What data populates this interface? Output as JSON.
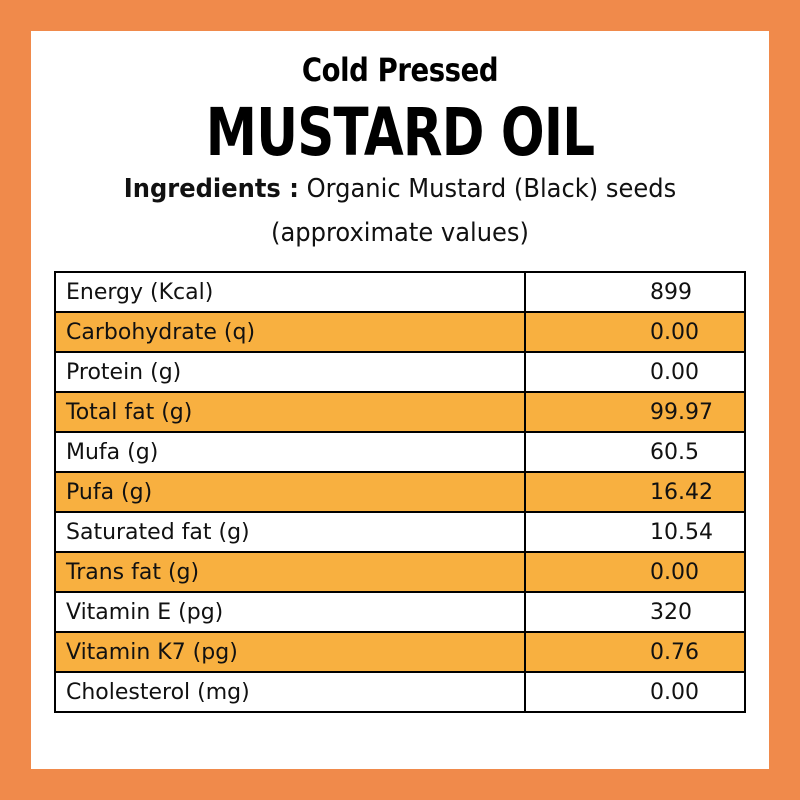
{
  "header": {
    "subtitle": "Cold Pressed",
    "title": "MUSTARD OIL",
    "ingredients_label": "Ingredients :",
    "ingredients_text": "Organic Mustard (Black) seeds",
    "note": "(approximate values)"
  },
  "nutrition": {
    "rows": [
      {
        "label": "Energy (Kcal)",
        "value": "899"
      },
      {
        "label": "Carbohydrate (q)",
        "value": "0.00"
      },
      {
        "label": "Protein (g)",
        "value": "0.00"
      },
      {
        "label": "Total fat (g)",
        "value": "99.97"
      },
      {
        "label": "Mufa (g)",
        "value": "60.5"
      },
      {
        "label": "Pufa (g)",
        "value": "16.42"
      },
      {
        "label": "Saturated fat (g)",
        "value": "10.54"
      },
      {
        "label": "Trans fat (g)",
        "value": "0.00"
      },
      {
        "label": "Vitamin E (pg)",
        "value": "320"
      },
      {
        "label": "Vitamin K7 (pg)",
        "value": "0.76"
      },
      {
        "label": "Cholesterol (mg)",
        "value": "0.00"
      }
    ]
  },
  "colors": {
    "border_frame": "#f08a4b",
    "row_highlight": "#f8b040",
    "background": "#ffffff"
  }
}
